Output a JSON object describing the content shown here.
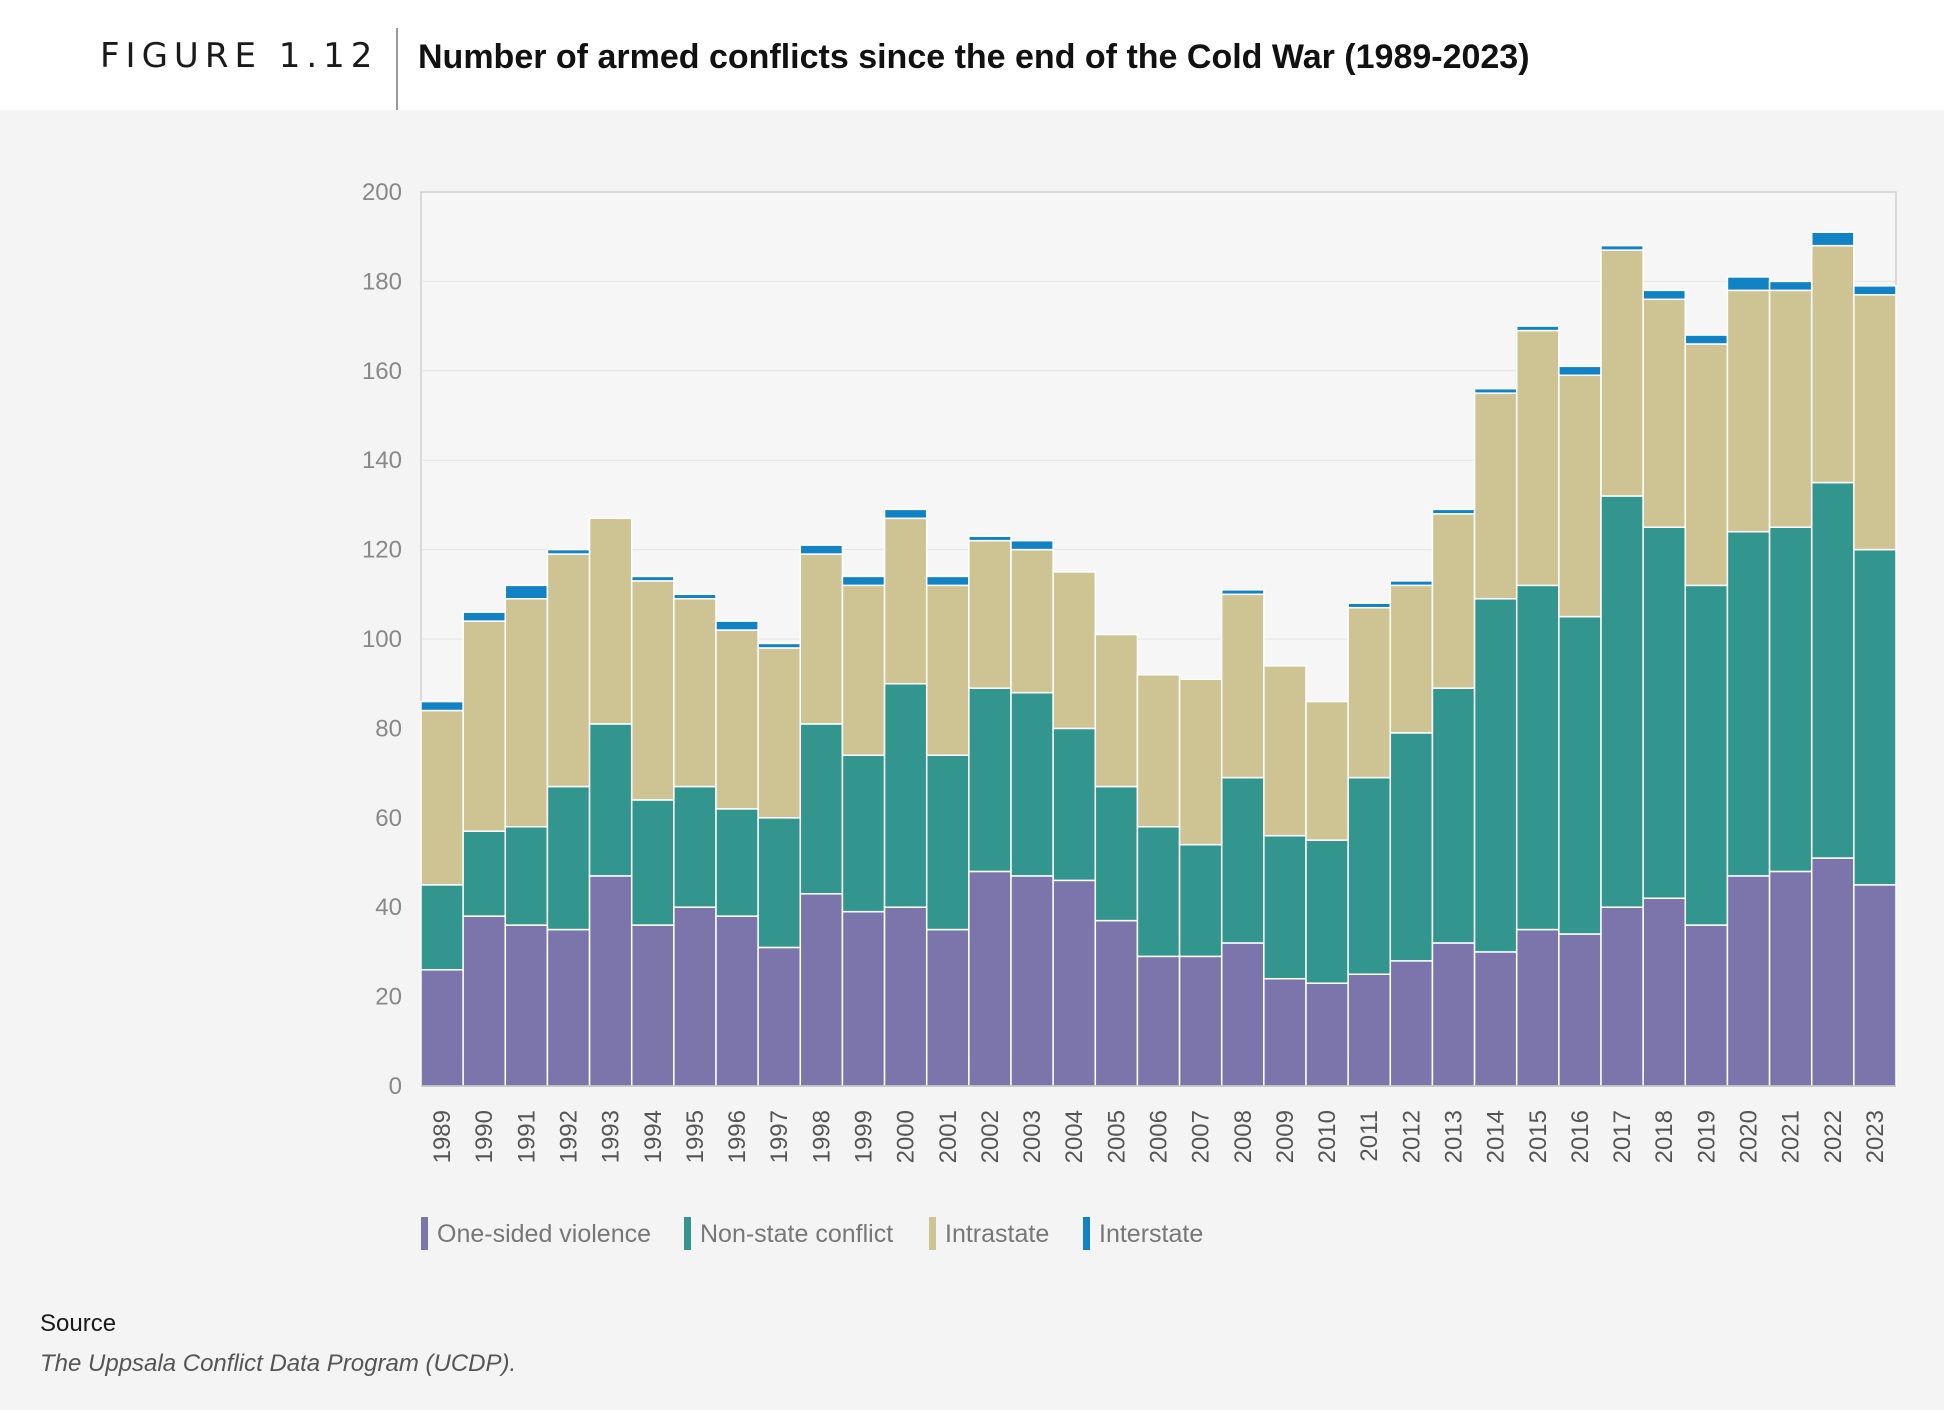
{
  "header": {
    "figure_label": "FIGURE 1.12",
    "title": "Number of armed conflicts since the end of the Cold War (1989-2023)"
  },
  "source": {
    "label": "Source",
    "text": "The Uppsala Conflict Data Program (UCDP)."
  },
  "chart_data": {
    "type": "bar",
    "stacked": true,
    "title": "Number of armed conflicts since the end of the Cold War (1989-2023)",
    "xlabel": "",
    "ylabel": "",
    "ylim": [
      0,
      200
    ],
    "yticks": [
      0,
      20,
      40,
      60,
      80,
      100,
      120,
      140,
      160,
      180,
      200
    ],
    "grid": true,
    "legend_position": "bottom",
    "categories": [
      "1989",
      "1990",
      "1991",
      "1992",
      "1993",
      "1994",
      "1995",
      "1996",
      "1997",
      "1998",
      "1999",
      "2000",
      "2001",
      "2002",
      "2003",
      "2004",
      "2005",
      "2006",
      "2007",
      "2008",
      "2009",
      "2010",
      "2011",
      "2012",
      "2013",
      "2014",
      "2015",
      "2016",
      "2017",
      "2018",
      "2019",
      "2020",
      "2021",
      "2022",
      "2023"
    ],
    "series": [
      {
        "name": "One-sided violence",
        "color": "#7b75ab",
        "values": [
          26,
          38,
          36,
          35,
          47,
          36,
          40,
          38,
          31,
          43,
          39,
          40,
          35,
          48,
          47,
          46,
          37,
          29,
          29,
          32,
          24,
          23,
          25,
          28,
          32,
          30,
          35,
          34,
          40,
          42,
          36,
          47,
          48,
          51,
          45
        ]
      },
      {
        "name": "Non-state conflict",
        "color": "#33968e",
        "values": [
          19,
          19,
          22,
          32,
          34,
          28,
          27,
          24,
          29,
          38,
          35,
          50,
          39,
          41,
          41,
          34,
          30,
          29,
          25,
          37,
          32,
          32,
          44,
          51,
          57,
          79,
          77,
          71,
          92,
          83,
          76,
          77,
          77,
          84,
          75
        ]
      },
      {
        "name": "Intrastate",
        "color": "#cec493",
        "values": [
          39,
          47,
          51,
          52,
          46,
          49,
          42,
          40,
          38,
          38,
          38,
          37,
          38,
          33,
          32,
          35,
          34,
          34,
          37,
          41,
          38,
          31,
          38,
          33,
          39,
          46,
          57,
          54,
          55,
          51,
          54,
          54,
          53,
          53,
          57
        ]
      },
      {
        "name": "Interstate",
        "color": "#1182c4",
        "values": [
          2,
          2,
          3,
          1,
          0,
          1,
          1,
          2,
          1,
          2,
          2,
          2,
          2,
          1,
          2,
          0,
          0,
          0,
          0,
          1,
          0,
          0,
          1,
          1,
          1,
          1,
          1,
          2,
          1,
          2,
          2,
          3,
          2,
          3,
          2
        ]
      }
    ]
  }
}
